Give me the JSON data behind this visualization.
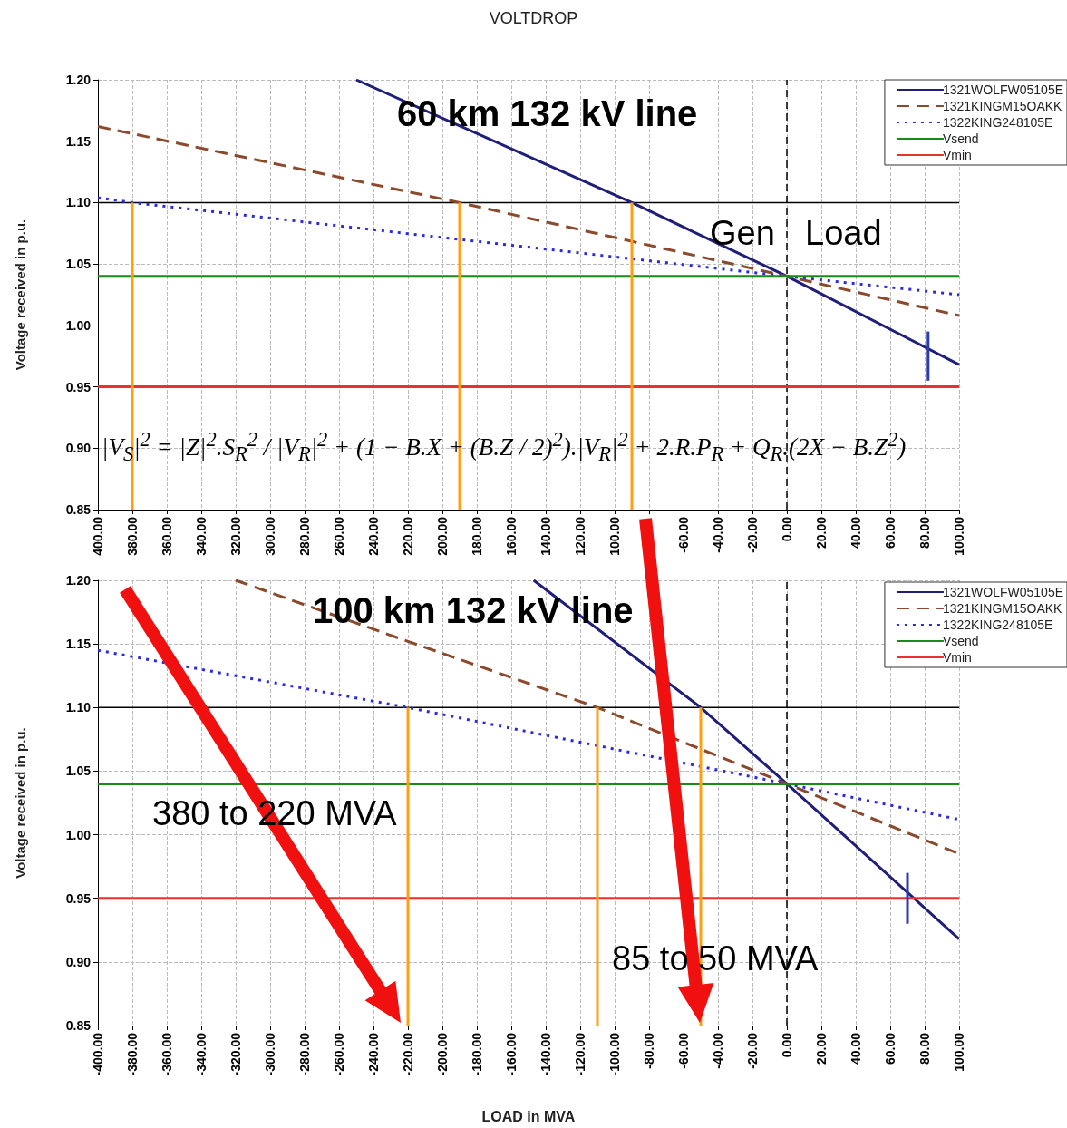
{
  "chart_data": [
    {
      "type": "line",
      "title": "VOLTDROP",
      "subtitle": "60 km 132 kV line",
      "ylabel": "Voltage received in p.u.",
      "series": [
        {
          "name": "1321WOLFW05105E",
          "color": "#1f1f7a",
          "line_style": "solid",
          "x": [
            -250,
            -90,
            0,
            100
          ],
          "values": [
            1.2,
            1.1,
            1.04,
            0.968
          ]
        },
        {
          "name": "1321KINGM15OAKK",
          "color": "#8b4a2b",
          "line_style": "dashed",
          "x": [
            -400,
            -190,
            0,
            100
          ],
          "values": [
            1.162,
            1.1,
            1.04,
            1.008
          ]
        },
        {
          "name": "1322KING248105E",
          "color": "#2b2bdc",
          "line_style": "dotted",
          "x": [
            -400,
            -380,
            0,
            100
          ],
          "values": [
            1.104,
            1.1,
            1.04,
            1.025
          ]
        },
        {
          "name": "Vsend",
          "color": "#1a8a1a",
          "line_style": "solid",
          "x": [
            -400,
            100
          ],
          "values": [
            1.04,
            1.04
          ]
        },
        {
          "name": "Vmin",
          "color": "#e8322a",
          "line_style": "solid",
          "x": [
            -400,
            100
          ],
          "values": [
            0.95,
            0.95
          ]
        },
        {
          "color": "#ffa010",
          "line_style": "solid",
          "x": [
            -380,
            -380
          ],
          "values": [
            0.85,
            1.1
          ]
        },
        {
          "color": "#ffa010",
          "line_style": "solid",
          "x": [
            -190,
            -190
          ],
          "values": [
            0.85,
            1.1
          ]
        },
        {
          "color": "#ffa010",
          "line_style": "solid",
          "x": [
            -90,
            -90
          ],
          "values": [
            0.85,
            1.1
          ]
        },
        {
          "color": "#2b3bb0",
          "line_style": "solid",
          "x": [
            82,
            82
          ],
          "values": [
            0.955,
            0.995
          ]
        }
      ],
      "xlim": [
        -400,
        100
      ],
      "xticks": [
        {
          "value": -400,
          "label": "400.00"
        },
        {
          "value": -380,
          "label": "380.00"
        },
        {
          "value": -360,
          "label": "360.00"
        },
        {
          "value": -340,
          "label": "340.00"
        },
        {
          "value": -320,
          "label": "320.00"
        },
        {
          "value": -300,
          "label": "300.00"
        },
        {
          "value": -280,
          "label": "280.00"
        },
        {
          "value": -260,
          "label": "260.00"
        },
        {
          "value": -240,
          "label": "240.00"
        },
        {
          "value": -220,
          "label": "220.00"
        },
        {
          "value": -200,
          "label": "200.00"
        },
        {
          "value": -180,
          "label": "180.00"
        },
        {
          "value": -160,
          "label": "160.00"
        },
        {
          "value": -140,
          "label": "140.00"
        },
        {
          "value": -120,
          "label": "120.00"
        },
        {
          "value": -100,
          "label": "100.00"
        },
        {
          "value": -80,
          "label": null
        },
        {
          "value": -60,
          "label": "-60.00"
        },
        {
          "value": -40,
          "label": "-40.00"
        },
        {
          "value": -20,
          "label": "-20.00"
        },
        {
          "value": 0,
          "label": "0.00"
        },
        {
          "value": 20,
          "label": "20.00"
        },
        {
          "value": 40,
          "label": "40.00"
        },
        {
          "value": 60,
          "label": "60.00"
        },
        {
          "value": 80,
          "label": "80.00"
        },
        {
          "value": 100,
          "label": "100.00"
        }
      ],
      "ylim": [
        0.85,
        1.2
      ],
      "yticks": [
        {
          "value": 0.85,
          "label": "0.85"
        },
        {
          "value": 0.9,
          "label": "0.90"
        },
        {
          "value": 0.95,
          "label": "0.95"
        },
        {
          "value": 1,
          "label": "1.00"
        },
        {
          "value": 1.05,
          "label": "1.05"
        },
        {
          "value": 1.1,
          "label": "1.10"
        },
        {
          "value": 1.15,
          "label": "1.15"
        },
        {
          "value": 1.2,
          "label": "1.20"
        }
      ],
      "ref_lines": [
        {
          "axis": "y",
          "value": 1.1,
          "color": "#000000",
          "line_style": "solid"
        },
        {
          "axis": "x",
          "value": 0,
          "color": "#000000",
          "line_style": "dashed"
        }
      ],
      "annotations": [
        "Gen",
        "Load",
        "|V$_{S}$|$^{2}$ = |Z|$^{2}$.S$_{R}$$^{2}$ / |V$_{R}$|$^{2}$ + (1 − B.X + (B.Z / 2)$^{2}$).|V$_{R}$|$^{2}$ + 2.R.P$_{R}$ + Q$_{R}$.(2X − B.Z$^{2}$)"
      ],
      "grid": true,
      "legend": "top right",
      "marker": "none"
    },
    {
      "type": "line",
      "title": "100 km 132 kV line",
      "xlabel": "LOAD in MVA",
      "ylabel": "Voltage received in p.u.",
      "series": [
        {
          "name": "1321WOLFW05105E",
          "color": "#1f1f7a",
          "line_style": "solid",
          "x": [
            -147,
            -50,
            0,
            100
          ],
          "values": [
            1.2,
            1.1,
            1.04,
            0.918
          ]
        },
        {
          "name": "1321KINGM15OAKK",
          "color": "#8b4a2b",
          "line_style": "dashed",
          "x": [
            -320,
            -220,
            -110,
            0,
            100
          ],
          "values": [
            1.2,
            1.152,
            1.1,
            1.04,
            0.985
          ]
        },
        {
          "name": "1322KING248105E",
          "color": "#2b2bdc",
          "line_style": "dotted",
          "x": [
            -400,
            -220,
            0,
            100
          ],
          "values": [
            1.145,
            1.1,
            1.04,
            1.012
          ]
        },
        {
          "name": "Vsend",
          "color": "#1a8a1a",
          "line_style": "solid",
          "x": [
            -400,
            100
          ],
          "values": [
            1.04,
            1.04
          ]
        },
        {
          "name": "Vmin",
          "color": "#e8322a",
          "line_style": "solid",
          "x": [
            -400,
            100
          ],
          "values": [
            0.95,
            0.95
          ]
        },
        {
          "color": "#ffa010",
          "line_style": "solid",
          "x": [
            -220,
            -220
          ],
          "values": [
            0.85,
            1.1
          ]
        },
        {
          "color": "#ffa010",
          "line_style": "solid",
          "x": [
            -110,
            -110
          ],
          "values": [
            0.85,
            1.1
          ]
        },
        {
          "color": "#ffa010",
          "line_style": "solid",
          "x": [
            -50,
            -50
          ],
          "values": [
            0.85,
            1.1
          ]
        },
        {
          "color": "#2b3bb0",
          "line_style": "solid",
          "x": [
            70,
            70
          ],
          "values": [
            0.93,
            0.97
          ]
        }
      ],
      "xlim": [
        -400,
        100
      ],
      "xticks": [
        {
          "value": -400,
          "label": "-400.00"
        },
        {
          "value": -380,
          "label": "-380.00"
        },
        {
          "value": -360,
          "label": "-360.00"
        },
        {
          "value": -340,
          "label": "-340.00"
        },
        {
          "value": -320,
          "label": "-320.00"
        },
        {
          "value": -300,
          "label": "-300.00"
        },
        {
          "value": -280,
          "label": "-280.00"
        },
        {
          "value": -260,
          "label": "-260.00"
        },
        {
          "value": -240,
          "label": "-240.00"
        },
        {
          "value": -220,
          "label": "-220.00"
        },
        {
          "value": -200,
          "label": "-200.00"
        },
        {
          "value": -180,
          "label": "-180.00"
        },
        {
          "value": -160,
          "label": "-160.00"
        },
        {
          "value": -140,
          "label": "-140.00"
        },
        {
          "value": -120,
          "label": "-120.00"
        },
        {
          "value": -100,
          "label": "-100.00"
        },
        {
          "value": -80,
          "label": "-80.00"
        },
        {
          "value": -60,
          "label": "-60.00"
        },
        {
          "value": -40,
          "label": "-40.00"
        },
        {
          "value": -20,
          "label": "-20.00"
        },
        {
          "value": 0,
          "label": "0.00"
        },
        {
          "value": 20,
          "label": "20.00"
        },
        {
          "value": 40,
          "label": "40.00"
        },
        {
          "value": 60,
          "label": "60.00"
        },
        {
          "value": 80,
          "label": "80.00"
        },
        {
          "value": 100,
          "label": "100.00"
        }
      ],
      "ylim": [
        0.85,
        1.2
      ],
      "yticks": [
        {
          "value": 0.85,
          "label": "0.85"
        },
        {
          "value": 0.9,
          "label": "0.90"
        },
        {
          "value": 0.95,
          "label": "0.95"
        },
        {
          "value": 1,
          "label": "1.00"
        },
        {
          "value": 1.05,
          "label": "1.05"
        },
        {
          "value": 1.1,
          "label": "1.10"
        },
        {
          "value": 1.15,
          "label": "1.15"
        },
        {
          "value": 1.2,
          "label": "1.20"
        }
      ],
      "ref_lines": [
        {
          "axis": "y",
          "value": 1.1,
          "color": "#000000",
          "line_style": "solid"
        },
        {
          "axis": "x",
          "value": 0,
          "color": "#000000",
          "line_style": "dashed"
        }
      ],
      "annotations": [
        "380 to 220 MVA",
        "85 to 50 MVA"
      ],
      "grid": true,
      "legend": "top right",
      "marker": "none"
    }
  ]
}
